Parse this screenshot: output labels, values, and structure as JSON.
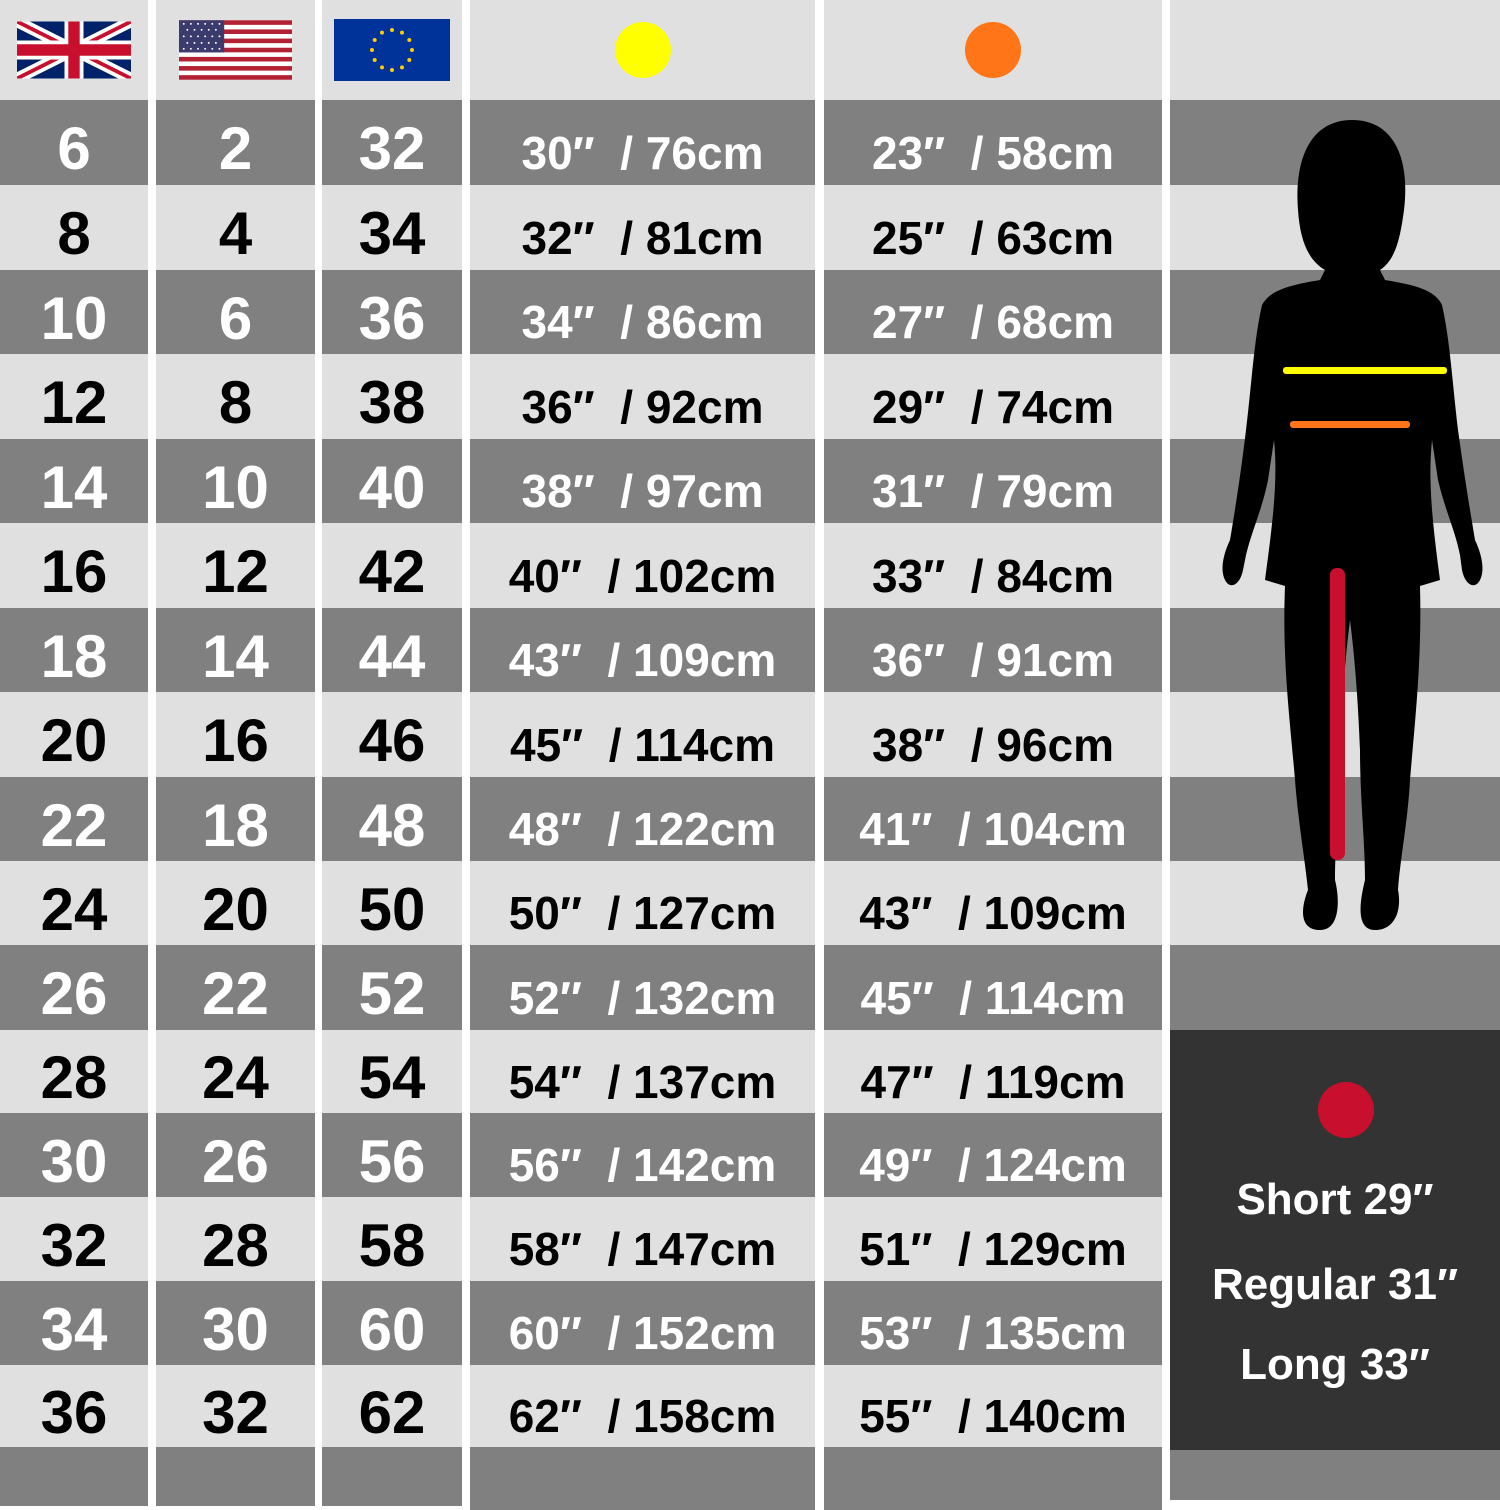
{
  "header": {
    "flags": [
      "uk-flag-icon",
      "us-flag-icon",
      "eu-flag-icon"
    ],
    "bust_marker_color": "#ffff00",
    "waist_marker_color": "#ff7518",
    "inseam_marker_color": "#c8102e"
  },
  "columns": {
    "uk": [
      "6",
      "8",
      "10",
      "12",
      "14",
      "16",
      "18",
      "20",
      "22",
      "24",
      "26",
      "28",
      "30",
      "32",
      "34",
      "36"
    ],
    "us": [
      "2",
      "4",
      "6",
      "8",
      "10",
      "12",
      "14",
      "16",
      "18",
      "20",
      "22",
      "24",
      "26",
      "28",
      "30",
      "32"
    ],
    "eu": [
      "32",
      "34",
      "36",
      "38",
      "40",
      "42",
      "44",
      "46",
      "48",
      "50",
      "52",
      "54",
      "56",
      "58",
      "60",
      "62"
    ],
    "bust": [
      "30″  / 76cm",
      "32″  / 81cm",
      "34″  / 86cm",
      "36″  / 92cm",
      "38″  / 97cm",
      "40″  / 102cm",
      "43″  / 109cm",
      "45″  / 114cm",
      "48″  / 122cm",
      "50″  / 127cm",
      "52″  / 132cm",
      "54″  / 137cm",
      "56″  / 142cm",
      "58″  / 147cm",
      "60″  / 152cm",
      "62″  / 158cm"
    ],
    "waist": [
      "23″  / 58cm",
      "25″  / 63cm",
      "27″  / 68cm",
      "29″  / 74cm",
      "31″  / 79cm",
      "33″  / 84cm",
      "36″  / 91cm",
      "38″  / 96cm",
      "41″  / 104cm",
      "43″  / 109cm",
      "45″  / 114cm",
      "47″  / 119cm",
      "49″  / 124cm",
      "51″  / 129cm",
      "53″  / 135cm",
      "55″  / 140cm"
    ]
  },
  "inseam_legend": {
    "short": "Short 29″",
    "regular": "Regular 31″",
    "long": "Long 33″"
  },
  "colors": {
    "dark_row": "#808080",
    "light_row": "#e0e0e0",
    "legend_bg": "#333333"
  }
}
